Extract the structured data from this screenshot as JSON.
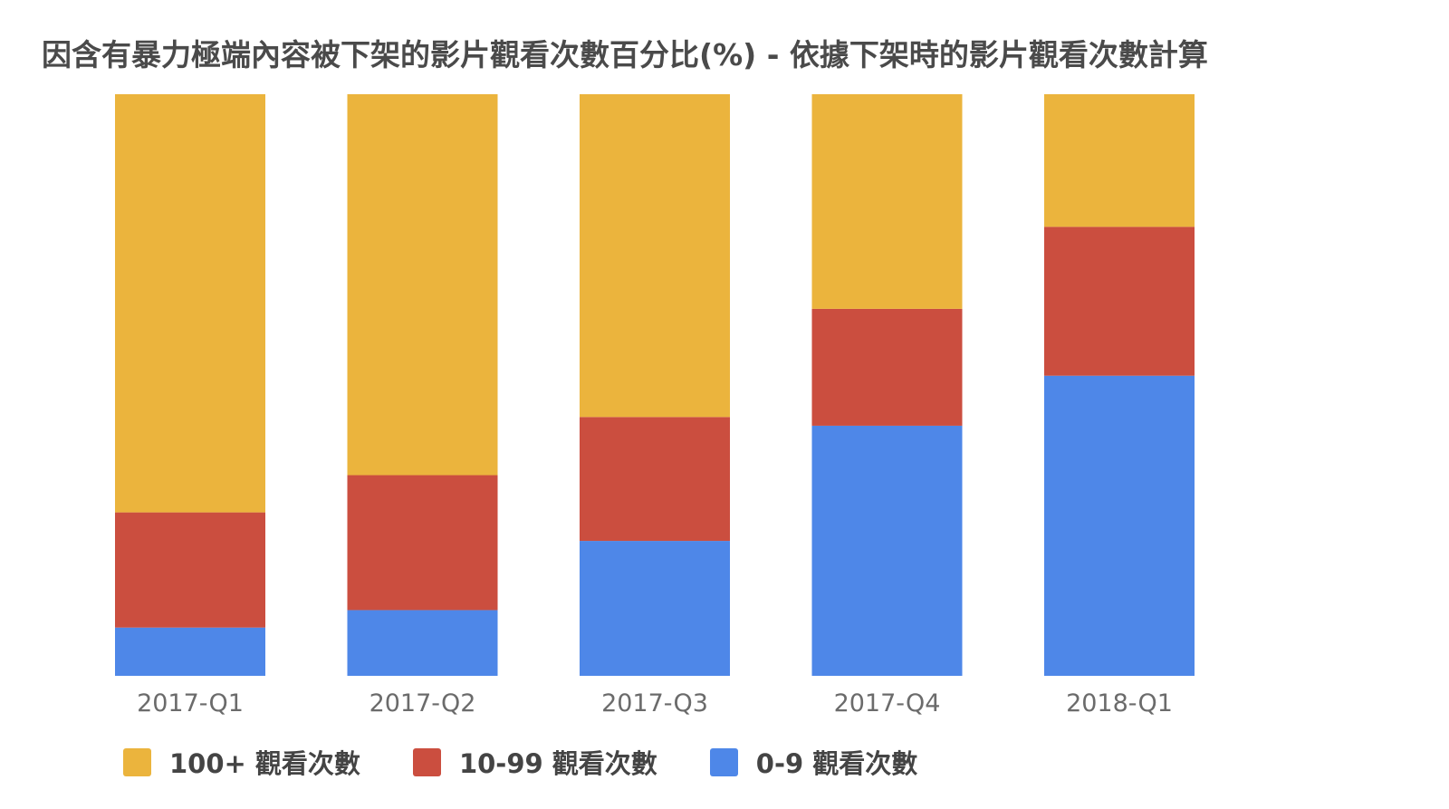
{
  "chart_data": {
    "type": "bar",
    "stacked": true,
    "title": "因含有暴力極端內容被下架的影片觀看次數百分比(%) - 依據下架時的影片觀看次數計算",
    "categories": [
      "2017-Q1",
      "2017-Q2",
      "2017-Q3",
      "2017-Q4",
      "2018-Q1"
    ],
    "series": [
      {
        "name": "0-9 觀看次數",
        "color": "#4e87e8",
        "values": [
          8.3,
          11.3,
          23.2,
          43.0,
          51.6
        ]
      },
      {
        "name": "10-99 觀看次數",
        "color": "#cb4e3f",
        "values": [
          19.8,
          23.2,
          21.3,
          20.1,
          25.6
        ]
      },
      {
        "name": "100+ 觀看次數",
        "color": "#ebb43d",
        "values": [
          71.9,
          65.5,
          55.5,
          36.9,
          22.8
        ]
      }
    ],
    "ylim": [
      0,
      100
    ],
    "grid": false,
    "legend_position": "bottom"
  },
  "legend": {
    "items": [
      {
        "label": "100+ 觀看次數",
        "color": "#ebb43d"
      },
      {
        "label": "10-99 觀看次數",
        "color": "#cb4e3f"
      },
      {
        "label": "0-9 觀看次數",
        "color": "#4e87e8"
      }
    ]
  }
}
